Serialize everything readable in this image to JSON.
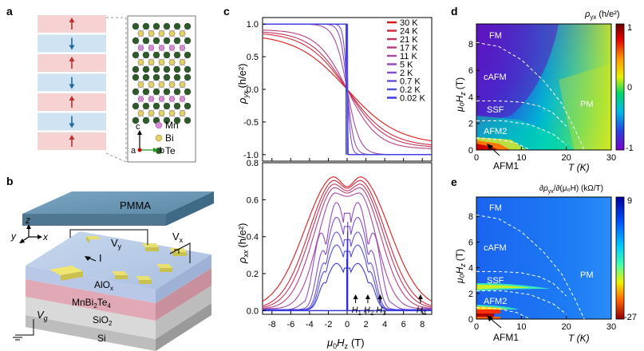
{
  "panel_labels": {
    "a": "a",
    "b": "b",
    "c": "c",
    "d": "d",
    "e": "e"
  },
  "panel_a": {
    "legend": [
      {
        "symbol": "Mn",
        "color": "#d98ad9"
      },
      {
        "symbol": "Bi",
        "color": "#e3d066"
      },
      {
        "symbol": "Te",
        "color": "#2f5b2a"
      }
    ],
    "axes": {
      "c": "c",
      "a": "a",
      "b": "b"
    },
    "layers": [
      {
        "dir": "up",
        "color": "#f6d2d2"
      },
      {
        "dir": "down",
        "color": "#cfe3f2"
      },
      {
        "dir": "up",
        "color": "#f6d2d2"
      },
      {
        "dir": "down",
        "color": "#cfe3f2"
      },
      {
        "dir": "up",
        "color": "#f6d2d2"
      },
      {
        "dir": "down",
        "color": "#cfe3f2"
      },
      {
        "dir": "up",
        "color": "#f6d2d2"
      }
    ]
  },
  "panel_b": {
    "pmma": "PMMA",
    "alox": "AlO",
    "alox_sub": "x",
    "mbt": "MnBi",
    "mbt_sub1": "2",
    "mbt_mid": "Te",
    "mbt_sub2": "4",
    "sio2": "SiO",
    "sio2_sub": "2",
    "si": "Si",
    "vy": "V",
    "vy_sub": "y",
    "vx": "V",
    "vx_sub": "x",
    "vg": "V",
    "vg_sub": "g",
    "current": "I",
    "axis_x": "x",
    "axis_y": "y",
    "axis_z": "z"
  },
  "panel_c": {
    "legend_temps": [
      "30 K",
      "24 K",
      "21 K",
      "17 K",
      "11 K",
      "5 K",
      "2 K",
      "0.7 K",
      "0.2 K",
      "0.02 K"
    ],
    "top_ylabel_main": "ρ",
    "top_ylabel_sub": "yx",
    "top_ylabel_unit": "(h/e²)",
    "bot_ylabel_main": "ρ",
    "bot_ylabel_sub": "xx",
    "bot_ylabel_unit": "(h/e²)",
    "xlabel_mu": "μ",
    "xlabel_sub": "0",
    "xlabel_H": "H",
    "xlabel_Hsub": "z",
    "xlabel_unit": "(T)",
    "markers": [
      {
        "label": "H",
        "sub": "1",
        "x": 0.9
      },
      {
        "label": "H",
        "sub": "2",
        "x": 2.2
      },
      {
        "label": "H",
        "sub": "3",
        "x": 3.5
      },
      {
        "label": "H",
        "sub": "4",
        "x": 7.8
      }
    ]
  },
  "panel_d": {
    "colorbar_title": "ρ",
    "colorbar_sub": "yx",
    "colorbar_unit": "(h/e²)",
    "colorbar_max": "1",
    "colorbar_mid": "0",
    "colorbar_min": "-1",
    "phases": [
      "FM",
      "cAFM",
      "SSF",
      "AFM2",
      "PM"
    ],
    "afm1": "AFM1",
    "ylabel": "μ₀H",
    "ylabel_sub": "z",
    "ylabel_unit": "(T)",
    "xlabel": "T (K)"
  },
  "panel_e": {
    "colorbar_title": "∂ρ",
    "colorbar_sub": "yx",
    "colorbar_rest": "/∂(μ₀H) (kΩ/T)",
    "colorbar_max": "9",
    "colorbar_min": "-27",
    "phases": [
      "FM",
      "cAFM",
      "SSF",
      "AFM2",
      "PM"
    ],
    "afm1": "AFM1",
    "ylabel": "μ₀H",
    "ylabel_sub": "z",
    "ylabel_unit": "(T)",
    "xlabel": "T (K)"
  },
  "chart_data": [
    {
      "id": "c_top",
      "type": "line",
      "title": "",
      "xlabel": "μ0Hz (T)",
      "ylabel": "ρyx (h/e²)",
      "xlim": [
        -9,
        9
      ],
      "ylim": [
        -1.1,
        1.1
      ],
      "xticks": [
        -8,
        -6,
        -4,
        -2,
        0,
        2,
        4,
        6,
        8
      ],
      "yticks": [
        -1.0,
        -0.5,
        0.0,
        0.5,
        1.0
      ],
      "ytick_labels": [
        "-1.0",
        "-0.5",
        "0.0",
        "0.5",
        "1.0"
      ],
      "series_temps_K": [
        30,
        24,
        21,
        17,
        11,
        5,
        2,
        0.7,
        0.2,
        0.02
      ],
      "note": "Hall resistivity curves; low-T curves quantized at ±1 h/e² with sharp switching at 0 T; high-T curves smooth."
    },
    {
      "id": "c_bottom",
      "type": "line",
      "title": "",
      "xlabel": "μ0Hz (T)",
      "ylabel": "ρxx (h/e²)",
      "xlim": [
        -9,
        9
      ],
      "ylim": [
        -0.02,
        0.8
      ],
      "xticks": [
        -8,
        -6,
        -4,
        -2,
        0,
        2,
        4,
        6,
        8
      ],
      "xtick_labels": [
        "-8",
        "-6",
        "-4",
        "-2",
        "0",
        "2",
        "4",
        "6",
        "8"
      ],
      "yticks": [
        0.0,
        0.2,
        0.4,
        0.6,
        0.8
      ],
      "ytick_labels": [
        "0.0",
        "0.2",
        "0.4",
        "0.6",
        "0.8"
      ],
      "series_temps_K": [
        30,
        24,
        21,
        17,
        11,
        5,
        2,
        0.7,
        0.2,
        0.02
      ],
      "peak_values": [
        0.72,
        0.7,
        0.68,
        0.66,
        0.63,
        0.58,
        0.5,
        0.42,
        0.35,
        0.25
      ]
    },
    {
      "id": "d",
      "type": "heatmap",
      "title": "ρyx (h/e²)",
      "xlabel": "T (K)",
      "ylabel": "μ0Hz (T)",
      "xlim": [
        0,
        30
      ],
      "ylim": [
        0,
        9.5
      ],
      "xticks": [
        0,
        10,
        20,
        30
      ],
      "xtick_labels": [
        "0",
        "10",
        "20",
        "30"
      ],
      "yticks": [
        0,
        2,
        4,
        6,
        8
      ],
      "ytick_labels": [
        "0",
        "2",
        "4",
        "6",
        "8"
      ],
      "colorbar_range": [
        -1,
        1
      ]
    },
    {
      "id": "e",
      "type": "heatmap",
      "title": "∂ρyx/∂(μ0H) (kΩ/T)",
      "xlabel": "T (K)",
      "ylabel": "μ0Hz (T)",
      "xlim": [
        0,
        30
      ],
      "ylim": [
        0,
        9.5
      ],
      "xticks": [
        0,
        10,
        20,
        30
      ],
      "xtick_labels": [
        "0",
        "10",
        "20",
        "30"
      ],
      "yticks": [
        0,
        2,
        4,
        6,
        8
      ],
      "ytick_labels": [
        "0",
        "2",
        "4",
        "6",
        "8"
      ],
      "colorbar_range": [
        -27,
        9
      ]
    }
  ]
}
